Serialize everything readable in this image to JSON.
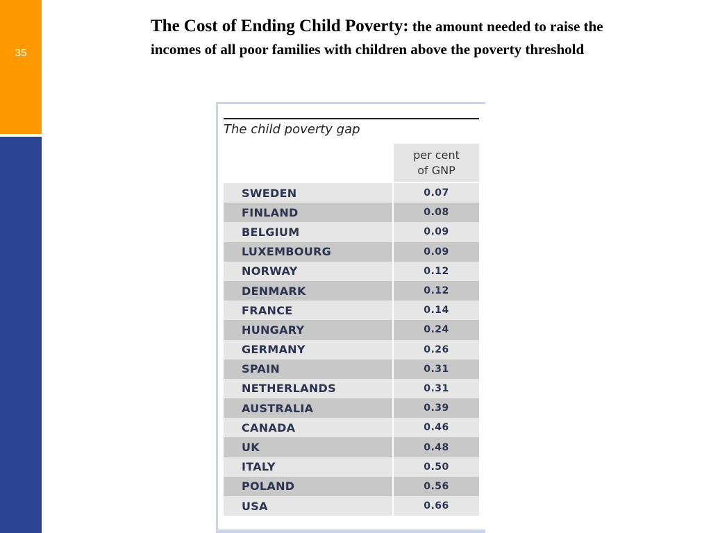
{
  "slide": {
    "number": "35"
  },
  "heading": {
    "title": "The Cost of Ending Child Poverty:",
    "subtitle": " the amount needed to raise the incomes of all  poor families with children above the poverty threshold"
  },
  "table": {
    "title": "The child poverty gap",
    "column_header_line1": "per cent",
    "column_header_line2": "of GNP",
    "rows": [
      {
        "country": "SWEDEN",
        "value": "0.07"
      },
      {
        "country": "FINLAND",
        "value": "0.08"
      },
      {
        "country": "BELGIUM",
        "value": "0.09"
      },
      {
        "country": "LUXEMBOURG",
        "value": "0.09"
      },
      {
        "country": "NORWAY",
        "value": "0.12"
      },
      {
        "country": "DENMARK",
        "value": "0.12"
      },
      {
        "country": "FRANCE",
        "value": "0.14"
      },
      {
        "country": "HUNGARY",
        "value": "0.24"
      },
      {
        "country": "GERMANY",
        "value": "0.26"
      },
      {
        "country": "SPAIN",
        "value": "0.31"
      },
      {
        "country": "NETHERLANDS",
        "value": "0.31"
      },
      {
        "country": "AUSTRALIA",
        "value": "0.39"
      },
      {
        "country": "CANADA",
        "value": "0.46"
      },
      {
        "country": "UK",
        "value": "0.48"
      },
      {
        "country": "ITALY",
        "value": "0.50"
      },
      {
        "country": "POLAND",
        "value": "0.56"
      },
      {
        "country": "USA",
        "value": "0.66"
      }
    ]
  },
  "colors": {
    "sidebar_top": "#ff9900",
    "sidebar_bottom": "#2a4494",
    "row_light": "#e6e6e6",
    "row_dark": "#c8c8c8"
  }
}
